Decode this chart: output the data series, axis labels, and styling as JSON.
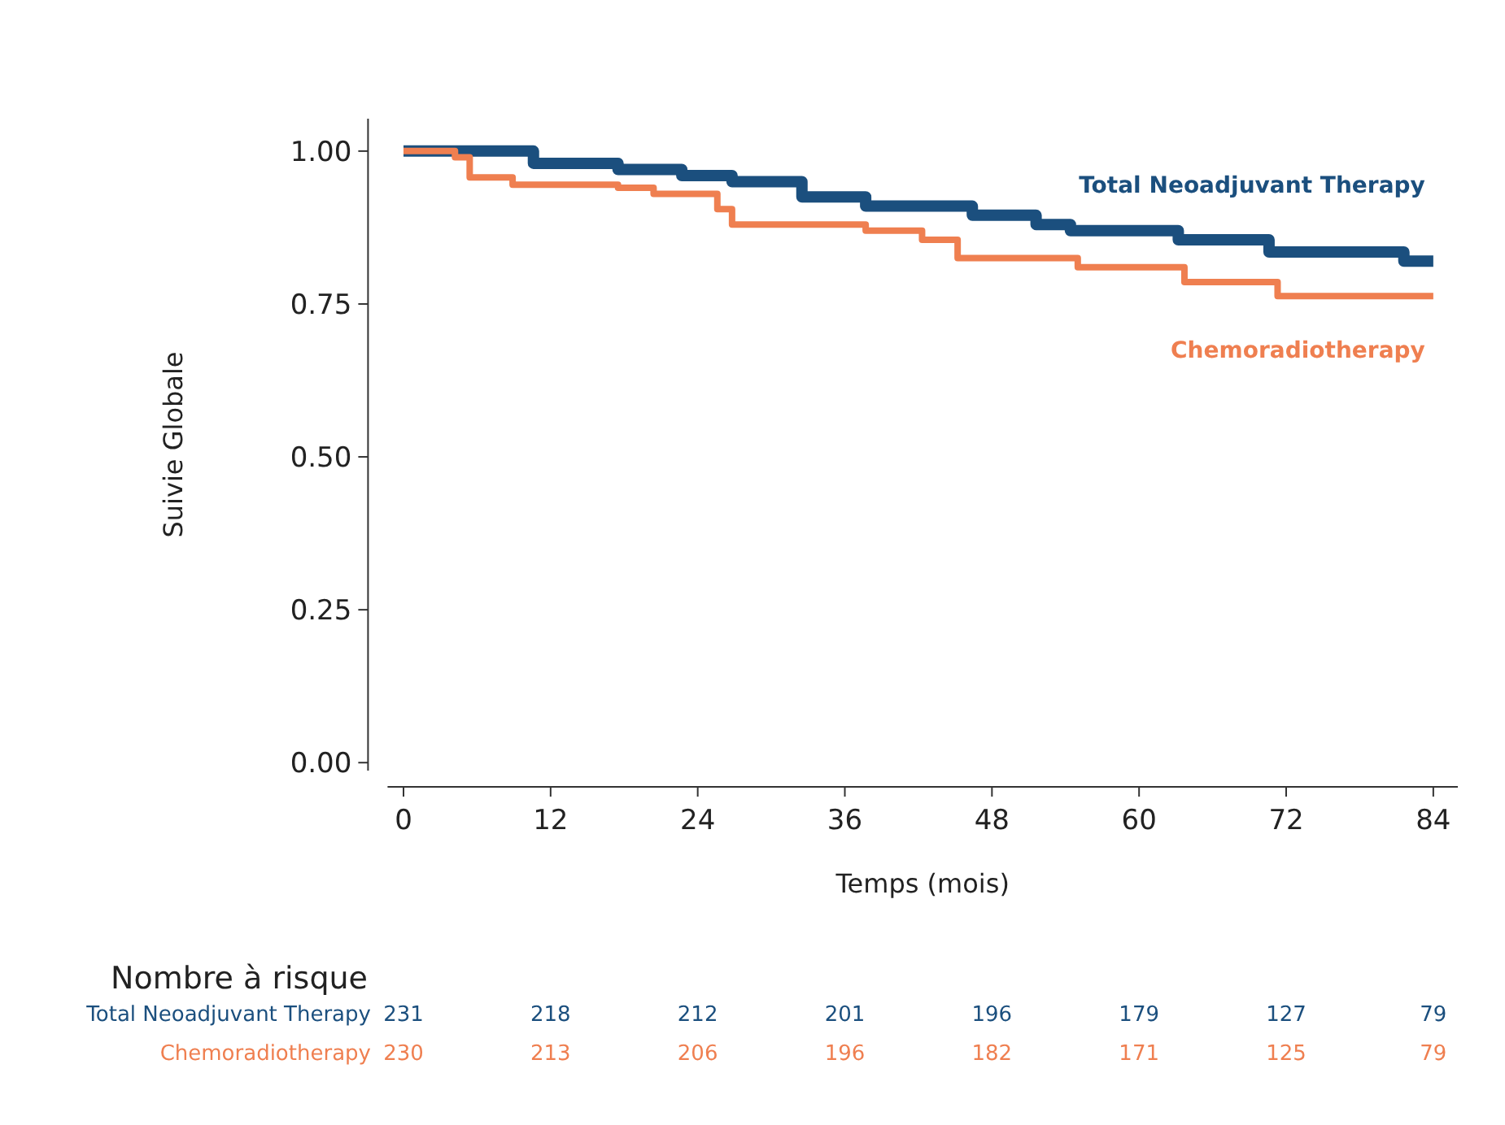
{
  "chart_data": {
    "type": "step",
    "ylabel": "Suivie Globale",
    "xlabel": "Temps (mois)",
    "xlim": [
      -1.3,
      86
    ],
    "xticks": [
      0,
      12,
      24,
      36,
      48,
      60,
      72,
      84
    ],
    "ylim": [
      -0.013,
      1.053
    ],
    "yticks": [
      {
        "value": 0,
        "label": "0.00"
      },
      {
        "value": 0.25,
        "label": "0.25"
      },
      {
        "value": 0.5,
        "label": "0.50"
      },
      {
        "value": 0.75,
        "label": "0.75"
      },
      {
        "value": 1,
        "label": "1.00"
      }
    ],
    "legend": "right",
    "grid": false,
    "series": [
      {
        "name": "Total Neoadjuvant Therapy",
        "color": "#1b4f7e",
        "x": [
          0,
          10.6,
          17.5,
          22.7,
          26.8,
          32.5,
          37.7,
          46.4,
          51.6,
          54.4,
          63.2,
          70.6,
          81.6,
          84
        ],
        "values": [
          1,
          0.98,
          0.97,
          0.96,
          0.95,
          0.925,
          0.91,
          0.895,
          0.88,
          0.87,
          0.855,
          0.835,
          0.82,
          0.82
        ]
      },
      {
        "name": "Chemoradiotherapy",
        "color": "#ef7f50",
        "x": [
          0,
          4.2,
          5.4,
          8.9,
          17.5,
          20.4,
          25.6,
          26.8,
          37.7,
          42.3,
          45.2,
          55,
          63.7,
          71.3,
          84
        ],
        "values": [
          1,
          0.99,
          0.957,
          0.945,
          0.94,
          0.93,
          0.905,
          0.88,
          0.87,
          0.855,
          0.825,
          0.81,
          0.786,
          0.763,
          0.763
        ]
      }
    ],
    "annotations": [
      "Nombre à risque",
      "231",
      "218",
      "212",
      "201",
      "196",
      "179",
      "127",
      "79",
      "230",
      "213",
      "206",
      "196",
      "182",
      "171",
      "125",
      "79"
    ]
  }
}
